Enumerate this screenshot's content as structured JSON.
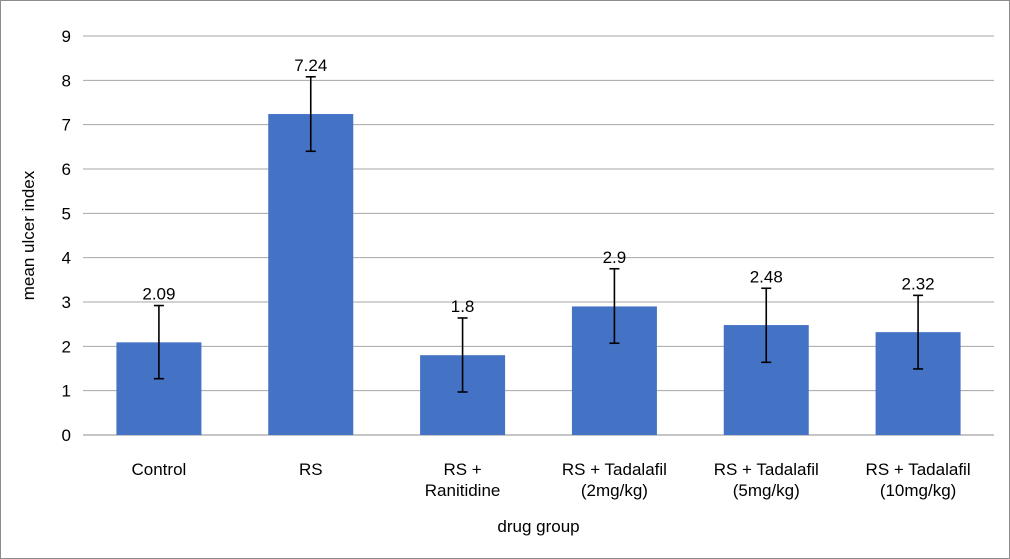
{
  "chart_data": {
    "type": "bar",
    "title": "",
    "xlabel": "drug group",
    "ylabel": "mean ulcer index",
    "ylim": [
      0,
      9
    ],
    "yticks": [
      0,
      1,
      2,
      3,
      4,
      5,
      6,
      7,
      8,
      9
    ],
    "grid": true,
    "legend": "none",
    "bar_color": "#4472C4",
    "categories": [
      [
        "Control"
      ],
      [
        "RS"
      ],
      [
        "RS +",
        "Ranitidine"
      ],
      [
        "RS + Tadalafil",
        "(2mg/kg)"
      ],
      [
        "RS + Tadalafil",
        "(5mg/kg)"
      ],
      [
        "RS + Tadalafil",
        "(10mg/kg)"
      ]
    ],
    "values": [
      2.09,
      7.24,
      1.8,
      2.9,
      2.48,
      2.32
    ],
    "data_labels": [
      "2.09",
      "7.24",
      "1.8",
      "2.9",
      "2.48",
      "2.32"
    ],
    "error_bars": [
      [
        1.27,
        2.92
      ],
      [
        6.4,
        8.08
      ],
      [
        0.97,
        2.64
      ],
      [
        2.07,
        3.75
      ],
      [
        1.64,
        3.31
      ],
      [
        1.49,
        3.15
      ]
    ]
  }
}
